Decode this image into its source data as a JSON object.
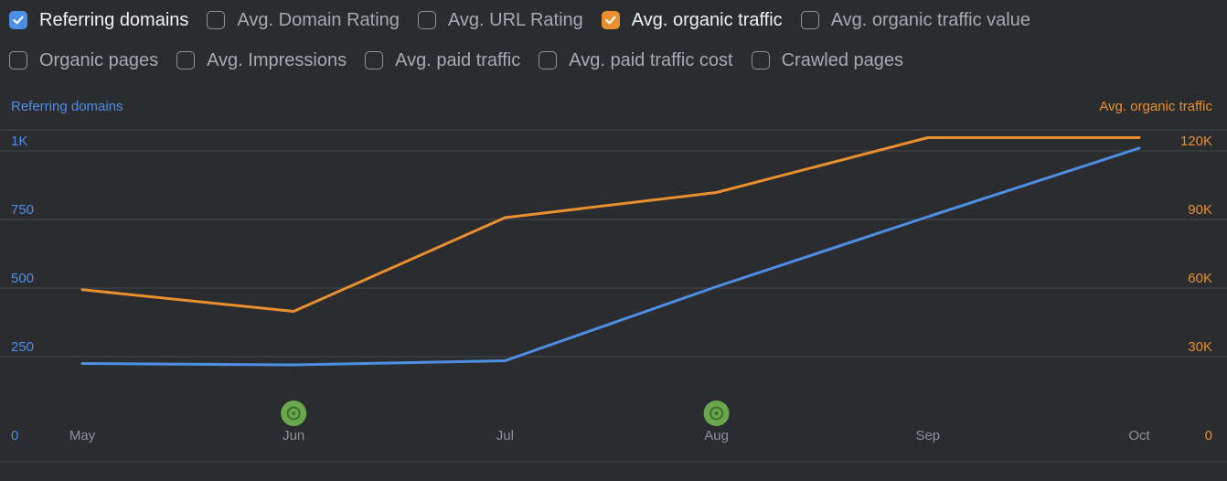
{
  "metrics": {
    "row1": [
      {
        "label": "Referring domains",
        "checked": true,
        "color": "#4e8fe6"
      },
      {
        "label": "Avg. Domain Rating",
        "checked": false
      },
      {
        "label": "Avg. URL Rating",
        "checked": false
      },
      {
        "label": "Avg. organic traffic",
        "checked": true,
        "color": "#e88f2f"
      },
      {
        "label": "Avg. organic traffic value",
        "checked": false
      }
    ],
    "row2": [
      {
        "label": "Organic pages",
        "checked": false
      },
      {
        "label": "Avg. Impressions",
        "checked": false
      },
      {
        "label": "Avg. paid traffic",
        "checked": false
      },
      {
        "label": "Avg. paid traffic cost",
        "checked": false
      },
      {
        "label": "Crawled pages",
        "checked": false
      }
    ]
  },
  "chart_data": {
    "type": "line",
    "categories": [
      "May",
      "Jun",
      "Jul",
      "Aug",
      "Sep",
      "Oct"
    ],
    "left_axis": {
      "label": "Referring domains",
      "ticks": [
        "0",
        "250",
        "500",
        "750",
        "1K"
      ],
      "tick_values": [
        0,
        250,
        500,
        750,
        1000
      ],
      "ylim": [
        0,
        1050
      ]
    },
    "right_axis": {
      "label": "Avg. organic traffic",
      "ticks": [
        "0",
        "30K",
        "60K",
        "90K",
        "120K"
      ],
      "tick_values": [
        0,
        30000,
        60000,
        90000,
        120000
      ],
      "ylim": [
        0,
        126000
      ]
    },
    "series": [
      {
        "name": "Referring domains",
        "axis": "left",
        "color": "#4e8fe6",
        "values": [
          185,
          180,
          195,
          465,
          720,
          970
        ]
      },
      {
        "name": "Avg. organic traffic",
        "axis": "right",
        "color": "#e88f2f",
        "values": [
          54500,
          45000,
          86000,
          97000,
          121000,
          121000
        ]
      }
    ],
    "annotations": [
      {
        "category": "Jun",
        "icon": "google-update-icon",
        "color": "#6aa84f"
      },
      {
        "category": "Aug",
        "icon": "google-update-icon",
        "color": "#6aa84f"
      }
    ],
    "grid": true
  }
}
